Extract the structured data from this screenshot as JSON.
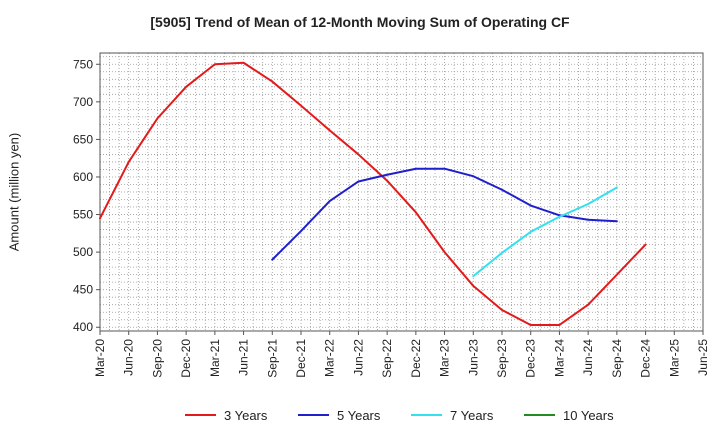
{
  "chart_data": {
    "type": "line",
    "title": "[5905]  Trend of Mean of 12-Month Moving Sum of Operating CF",
    "xlabel": "",
    "ylabel": "Amount (million yen)",
    "ylim": [
      395,
      765
    ],
    "yticks": [
      400,
      450,
      500,
      550,
      600,
      650,
      700,
      750
    ],
    "categories": [
      "Mar-20",
      "Jun-20",
      "Sep-20",
      "Dec-20",
      "Mar-21",
      "Jun-21",
      "Sep-21",
      "Dec-21",
      "Mar-22",
      "Jun-22",
      "Sep-22",
      "Dec-22",
      "Mar-23",
      "Jun-23",
      "Sep-23",
      "Dec-23",
      "Mar-24",
      "Jun-24",
      "Sep-24",
      "Dec-24",
      "Mar-25",
      "Jun-25"
    ],
    "legend_position": "bottom",
    "series": [
      {
        "name": "3 Years",
        "color": "#e31a1c",
        "values": [
          545,
          620,
          678,
          720,
          750,
          752,
          727,
          695,
          662,
          630,
          595,
          553,
          500,
          455,
          423,
          403,
          403,
          430,
          470,
          510,
          null,
          null
        ]
      },
      {
        "name": "5 Years",
        "color": "#1f1fcc",
        "values": [
          null,
          null,
          null,
          null,
          null,
          null,
          490,
          528,
          568,
          594,
          603,
          611,
          611,
          601,
          583,
          562,
          549,
          543,
          541,
          null,
          null,
          null
        ]
      },
      {
        "name": "7 Years",
        "color": "#33e0f0",
        "values": [
          null,
          null,
          null,
          null,
          null,
          null,
          null,
          null,
          null,
          null,
          null,
          null,
          null,
          468,
          499,
          527,
          547,
          564,
          586,
          null,
          null,
          null
        ]
      },
      {
        "name": "10 Years",
        "color": "#228b22",
        "values": [
          null,
          null,
          null,
          null,
          null,
          null,
          null,
          null,
          null,
          null,
          null,
          null,
          null,
          null,
          null,
          null,
          null,
          null,
          null,
          null,
          null,
          null
        ]
      }
    ]
  }
}
